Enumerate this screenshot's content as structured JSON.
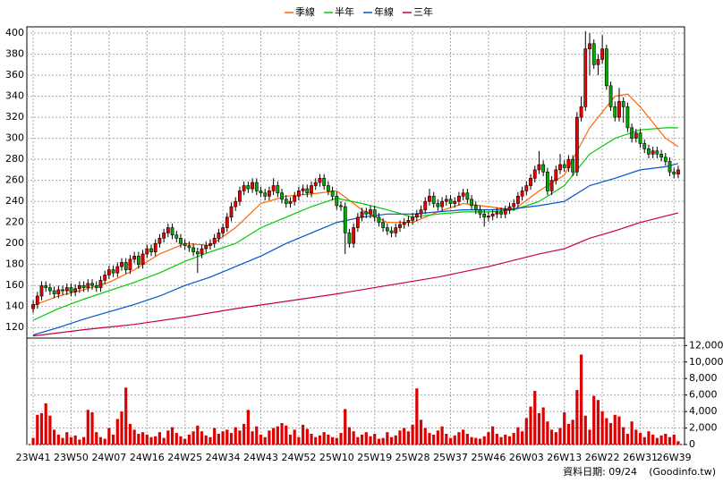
{
  "chart_data": {
    "type": "candlestick",
    "grid": true,
    "xlim": [
      -1.5,
      154.5
    ],
    "xticks": [
      {
        "value": 0,
        "label": "23W41"
      },
      {
        "value": 9,
        "label": "23W50"
      },
      {
        "value": 18,
        "label": "24W07"
      },
      {
        "value": 27,
        "label": "24W16"
      },
      {
        "value": 36,
        "label": "24W25"
      },
      {
        "value": 45,
        "label": "24W34"
      },
      {
        "value": 54,
        "label": "24W43"
      },
      {
        "value": 63,
        "label": "24W52"
      },
      {
        "value": 72,
        "label": "25W10"
      },
      {
        "value": 81,
        "label": "25W19"
      },
      {
        "value": 90,
        "label": "25W28"
      },
      {
        "value": 99,
        "label": "25W37"
      },
      {
        "value": 108,
        "label": "25W46"
      },
      {
        "value": 117,
        "label": "26W03"
      },
      {
        "value": 126,
        "label": "26W13"
      },
      {
        "value": 135,
        "label": "26W22"
      },
      {
        "value": 144,
        "label": "26W31"
      },
      {
        "value": 152,
        "label": "26W39"
      }
    ],
    "ylim": [
      110,
      406
    ],
    "yticks": [
      120,
      140,
      160,
      180,
      200,
      220,
      240,
      260,
      280,
      300,
      320,
      340,
      360,
      380,
      400
    ],
    "candles": {
      "up_color": "#ee0000",
      "down_color": "#00aa00",
      "open": [
        138,
        142,
        150,
        160,
        158,
        155,
        152,
        156,
        155,
        158,
        154,
        157,
        160,
        158,
        162,
        160,
        158,
        165,
        170,
        175,
        172,
        178,
        182,
        175,
        185,
        188,
        180,
        190,
        195,
        192,
        200,
        205,
        210,
        215,
        208,
        205,
        200,
        198,
        196,
        192,
        190,
        195,
        198,
        200,
        205,
        210,
        215,
        225,
        235,
        240,
        250,
        255,
        252,
        258,
        250,
        248,
        245,
        250,
        255,
        248,
        242,
        238,
        240,
        245,
        250,
        252,
        248,
        255,
        258,
        262,
        255,
        250,
        245,
        236,
        235,
        210,
        200,
        215,
        225,
        230,
        228,
        232,
        225,
        220,
        215,
        212,
        210,
        215,
        218,
        220,
        222,
        225,
        228,
        232,
        240,
        245,
        238,
        235,
        240,
        242,
        238,
        240,
        245,
        248,
        242,
        236,
        232,
        228,
        225,
        226,
        228,
        230,
        228,
        232,
        235,
        238,
        245,
        250,
        255,
        262,
        270,
        275,
        268,
        250,
        260,
        270,
        275,
        272,
        280,
        268,
        320,
        330,
        385,
        390,
        370,
        375,
        385,
        350,
        330,
        320,
        335,
        330,
        310,
        300,
        305,
        295,
        290,
        285,
        288,
        285,
        282,
        278,
        268,
        266
      ],
      "high": [
        146,
        154,
        164,
        164,
        162,
        159,
        160,
        160,
        162,
        162,
        161,
        164,
        164,
        166,
        166,
        164,
        169,
        174,
        179,
        179,
        182,
        186,
        186,
        189,
        192,
        192,
        194,
        199,
        199,
        204,
        209,
        214,
        219,
        219,
        212,
        209,
        204,
        202,
        200,
        196,
        199,
        202,
        204,
        209,
        214,
        219,
        229,
        239,
        244,
        254,
        259,
        259,
        262,
        262,
        254,
        252,
        254,
        262,
        259,
        252,
        246,
        244,
        249,
        254,
        256,
        256,
        259,
        262,
        266,
        266,
        259,
        254,
        249,
        240,
        239,
        214,
        219,
        229,
        234,
        234,
        236,
        236,
        229,
        224,
        219,
        216,
        219,
        222,
        224,
        226,
        229,
        232,
        236,
        244,
        252,
        249,
        242,
        244,
        246,
        246,
        244,
        249,
        252,
        252,
        246,
        240,
        236,
        232,
        230,
        232,
        234,
        234,
        236,
        239,
        242,
        249,
        254,
        259,
        266,
        274,
        288,
        279,
        272,
        264,
        274,
        285,
        279,
        284,
        284,
        325,
        340,
        402,
        400,
        394,
        380,
        398,
        389,
        354,
        335,
        348,
        339,
        334,
        314,
        309,
        309,
        299,
        294,
        292,
        292,
        289,
        286,
        282,
        272,
        274
      ],
      "low": [
        134,
        138,
        146,
        154,
        151,
        148,
        148,
        151,
        151,
        150,
        150,
        153,
        154,
        154,
        156,
        154,
        154,
        161,
        166,
        168,
        168,
        174,
        171,
        171,
        181,
        176,
        176,
        186,
        188,
        188,
        196,
        201,
        206,
        204,
        201,
        196,
        194,
        192,
        188,
        172,
        186,
        191,
        194,
        196,
        201,
        206,
        211,
        221,
        231,
        236,
        246,
        248,
        248,
        246,
        244,
        241,
        241,
        246,
        244,
        238,
        234,
        234,
        236,
        241,
        246,
        244,
        244,
        251,
        254,
        251,
        246,
        241,
        232,
        231,
        190,
        196,
        196,
        211,
        221,
        224,
        224,
        221,
        216,
        211,
        208,
        206,
        206,
        211,
        214,
        216,
        218,
        221,
        224,
        228,
        236,
        234,
        231,
        231,
        236,
        234,
        234,
        236,
        241,
        238,
        232,
        228,
        224,
        216,
        221,
        222,
        224,
        224,
        224,
        228,
        231,
        234,
        241,
        246,
        251,
        258,
        266,
        264,
        246,
        246,
        256,
        266,
        268,
        268,
        264,
        264,
        316,
        326,
        360,
        366,
        360,
        371,
        346,
        326,
        316,
        316,
        315,
        306,
        296,
        296,
        291,
        286,
        281,
        281,
        281,
        278,
        274,
        264,
        262,
        262
      ],
      "close": [
        142,
        150,
        160,
        158,
        155,
        152,
        156,
        155,
        158,
        154,
        157,
        160,
        158,
        162,
        160,
        158,
        165,
        170,
        175,
        172,
        178,
        182,
        175,
        185,
        188,
        180,
        190,
        195,
        192,
        200,
        205,
        210,
        215,
        208,
        205,
        200,
        198,
        196,
        192,
        190,
        195,
        198,
        200,
        205,
        210,
        215,
        225,
        235,
        240,
        250,
        255,
        252,
        258,
        250,
        248,
        245,
        250,
        255,
        248,
        242,
        238,
        240,
        245,
        250,
        252,
        248,
        255,
        258,
        262,
        255,
        250,
        245,
        236,
        235,
        210,
        200,
        215,
        225,
        230,
        228,
        232,
        225,
        220,
        215,
        212,
        210,
        215,
        218,
        220,
        222,
        225,
        228,
        232,
        240,
        245,
        238,
        235,
        240,
        242,
        238,
        240,
        245,
        248,
        242,
        236,
        232,
        228,
        225,
        226,
        228,
        230,
        228,
        232,
        235,
        238,
        245,
        250,
        255,
        262,
        270,
        275,
        268,
        250,
        260,
        270,
        275,
        272,
        280,
        268,
        320,
        330,
        385,
        390,
        370,
        375,
        385,
        350,
        330,
        320,
        335,
        330,
        310,
        300,
        305,
        295,
        290,
        285,
        288,
        285,
        282,
        278,
        268,
        266,
        270
      ]
    },
    "series": [
      {
        "name": "季線",
        "color": "#ff6600",
        "x": [
          0,
          6,
          12,
          18,
          24,
          30,
          36,
          42,
          48,
          54,
          60,
          66,
          72,
          78,
          84,
          90,
          96,
          102,
          108,
          114,
          120,
          126,
          132,
          138,
          141,
          144,
          150,
          153
        ],
        "values": [
          141,
          150,
          156,
          163,
          175,
          190,
          200,
          198,
          215,
          238,
          245,
          247,
          250,
          232,
          220,
          220,
          230,
          238,
          235,
          232,
          250,
          265,
          310,
          340,
          342,
          330,
          300,
          292
        ]
      },
      {
        "name": "半年",
        "color": "#00cc00",
        "x": [
          0,
          6,
          12,
          18,
          24,
          30,
          36,
          42,
          48,
          54,
          60,
          66,
          72,
          78,
          84,
          90,
          96,
          102,
          108,
          114,
          120,
          126,
          132,
          138,
          144,
          150,
          153
        ],
        "values": [
          127,
          138,
          147,
          155,
          163,
          172,
          183,
          192,
          200,
          215,
          225,
          235,
          243,
          238,
          232,
          225,
          228,
          230,
          230,
          232,
          240,
          255,
          285,
          300,
          308,
          310,
          310
        ]
      },
      {
        "name": "年線",
        "color": "#0055cc",
        "x": [
          0,
          6,
          12,
          18,
          24,
          30,
          36,
          42,
          48,
          54,
          60,
          66,
          72,
          78,
          84,
          90,
          96,
          102,
          108,
          114,
          120,
          126,
          132,
          138,
          144,
          150,
          153
        ],
        "values": [
          113,
          120,
          128,
          135,
          142,
          150,
          160,
          168,
          178,
          188,
          200,
          210,
          220,
          225,
          228,
          228,
          230,
          232,
          232,
          233,
          236,
          240,
          255,
          262,
          270,
          273,
          276
        ]
      },
      {
        "name": "三年",
        "color": "#cc0033",
        "x": [
          0,
          12,
          24,
          36,
          48,
          60,
          72,
          84,
          96,
          108,
          120,
          126,
          132,
          138,
          144,
          150,
          153
        ],
        "values": [
          112,
          118,
          123,
          130,
          138,
          145,
          152,
          160,
          168,
          178,
          190,
          195,
          205,
          212,
          220,
          226,
          229
        ]
      }
    ],
    "volume": {
      "color": "#dd0000",
      "ylim": [
        0,
        12900
      ],
      "yticks": [
        0,
        {
          "value": 2000,
          "label": "2,000"
        },
        {
          "value": 4000,
          "label": "4,000"
        },
        {
          "value": 6000,
          "label": "6,000"
        },
        {
          "value": 8000,
          "label": "8,000"
        },
        {
          "value": 10000,
          "label": "10,000"
        },
        {
          "value": 12000,
          "label": "12,000"
        }
      ],
      "values": [
        800,
        3600,
        3800,
        5000,
        3500,
        1800,
        1200,
        800,
        1500,
        900,
        1100,
        600,
        900,
        4200,
        3900,
        1500,
        900,
        700,
        2000,
        1200,
        3100,
        4000,
        6900,
        2500,
        1800,
        1300,
        1500,
        1200,
        900,
        1000,
        1500,
        800,
        1700,
        2100,
        1400,
        1000,
        700,
        1200,
        1600,
        2300,
        1600,
        1100,
        900,
        2000,
        1300,
        1600,
        1800,
        1400,
        2100,
        1700,
        2500,
        4200,
        1600,
        2200,
        1200,
        900,
        1700,
        2000,
        2200,
        2600,
        2300,
        1200,
        1800,
        900,
        2400,
        1900,
        1300,
        900,
        1100,
        1500,
        1200,
        900,
        800,
        1400,
        4300,
        2100,
        1600,
        900,
        1200,
        1500,
        1000,
        1300,
        700,
        800,
        1500,
        900,
        1100,
        1700,
        2000,
        1600,
        2400,
        6800,
        3000,
        2000,
        1400,
        1200,
        1700,
        2200,
        1300,
        800,
        1100,
        1500,
        1800,
        1300,
        900,
        800,
        700,
        1000,
        1500,
        2200,
        1300,
        900,
        1200,
        1000,
        1400,
        2100,
        1600,
        3200,
        4600,
        6500,
        3800,
        4500,
        2800,
        1800,
        1500,
        2000,
        3900,
        2500,
        3000,
        6600,
        10900,
        3500,
        1800,
        5900,
        5400,
        4000,
        3200,
        2600,
        3600,
        3400,
        2100,
        1300,
        2800,
        1800,
        1400,
        900,
        1600,
        1200,
        800,
        1100,
        1300,
        900,
        1200,
        400
      ]
    },
    "date_note": "資料日期: 09/24",
    "source": "(Goodinfo.tw)"
  }
}
